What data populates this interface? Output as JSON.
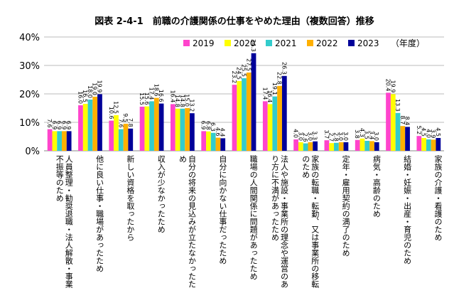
{
  "chart_data": {
    "type": "bar",
    "title": "図表 2-4-1　前職の介護関係の仕事をやめた理由（複数回答）推移",
    "legend_note": "（年度）",
    "categories": [
      "人員整理・勧奨退職・法人解散・事業不振等のため",
      "他に良い仕事・職場があったため",
      "新しい資格を取ったから",
      "収入が少なかったため",
      "自分の将来の見込みが立たなかったため",
      "自分に向かない仕事だったため",
      "職場の人間関係に問題があったため",
      "法人や施設・事業所の理念や運営のあり方に不満があったため",
      "家族の転職・転勤、又は事業所の移転のため",
      "定年・雇用契約の満了のため",
      "病気・高齢のため",
      "結婚・妊娠・出産・育児のため",
      "家族の介護・看護のため"
    ],
    "series": [
      {
        "name": "2019",
        "color": "#ff44cc",
        "values": [
          7.6,
          16.0,
          10.6,
          15.5,
          16.4,
          6.9,
          23.2,
          17.4,
          4.0,
          3.7,
          3.8,
          20.4,
          5.2
        ],
        "value_labels": [
          "7.6",
          "16.0",
          "10.6",
          "15.5",
          "16.4",
          "6.9",
          "23.2",
          "17.4",
          "4.0",
          "3.7",
          "3.8",
          "20.4",
          "5.2"
        ]
      },
      {
        "name": "2020",
        "color": "#ffff00",
        "values": [
          6.9,
          16.5,
          12.5,
          15.6,
          14.8,
          6.8,
          24.5,
          16.4,
          3.0,
          2.7,
          4.3,
          19.9,
          4.5
        ],
        "value_labels": [
          "6.9",
          "16.5",
          "12.5",
          "15.6",
          "14.8",
          "6.8",
          "24.5",
          "16.4",
          "3.0",
          "2.7",
          "4.3",
          "19.9",
          "4.5"
        ]
      },
      {
        "name": "2021",
        "color": "#33cccc",
        "values": [
          6.9,
          18.0,
          7.6,
          17.4,
          14.8,
          6.3,
          25.5,
          19.1,
          2.6,
          2.8,
          3.5,
          13.3,
          4.0
        ],
        "value_labels": [
          "6.9",
          "18.0",
          "7.6",
          "17.4",
          "14.8",
          "6.3",
          "25.5",
          "19.1",
          "2.6",
          "2.8",
          "3.5",
          "13.3",
          "4.0"
        ]
      },
      {
        "name": "2022",
        "color": "#ffb000",
        "values": [
          6.9,
          19.0,
          9.5,
          18.6,
          15.0,
          4.6,
          27.5,
          22.8,
          3.0,
          3.0,
          3.4,
          8.7,
          3.9
        ],
        "value_labels": [
          "6.9",
          "19.0",
          "9.5",
          "18.6",
          "15.0",
          "4.6",
          "27.5",
          "22.8",
          "3.0",
          "3.0",
          "3.4",
          "8.7",
          "3.9"
        ]
      },
      {
        "name": "2023",
        "color": "#000099",
        "values": [
          6.9,
          19.9,
          7.8,
          16.6,
          13.2,
          4.4,
          34.3,
          26.3,
          3.3,
          3.0,
          3.0,
          8.4,
          4.5
        ],
        "value_labels": [
          "6.9",
          "19.9",
          "7.8",
          "16.6",
          "13.2",
          "4.4",
          "34.3",
          "26.3",
          "3.3",
          "3.0",
          "3.0",
          "8.4",
          "4.5"
        ]
      }
    ],
    "ylim": [
      0,
      40
    ],
    "yticks": [
      {
        "value": 0,
        "label": "0%"
      },
      {
        "value": 10,
        "label": "10%"
      },
      {
        "value": 20,
        "label": "20%"
      },
      {
        "value": 30,
        "label": "30%"
      },
      {
        "value": 40,
        "label": "40%"
      }
    ],
    "grid": true
  }
}
